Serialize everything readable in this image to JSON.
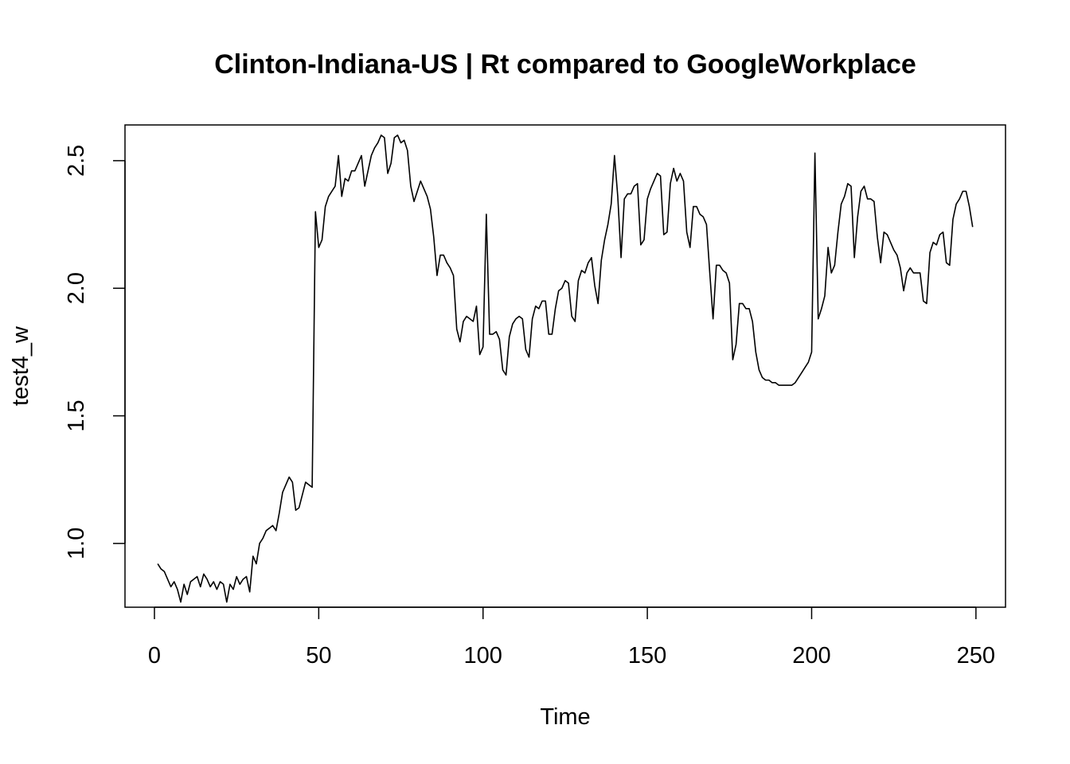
{
  "chart_data": {
    "type": "line",
    "title": "Clinton-Indiana-US | Rt compared to GoogleWorkplace",
    "xlabel": "Time",
    "ylabel": "test4_w",
    "xlim": [
      -8.96,
      259
    ],
    "ylim": [
      0.75,
      2.64
    ],
    "xticks": [
      0,
      50,
      100,
      150,
      200,
      250
    ],
    "yticks": [
      1.0,
      1.5,
      2.0,
      2.5
    ],
    "xtick_labels": [
      "0",
      "50",
      "100",
      "150",
      "200",
      "250"
    ],
    "ytick_labels": [
      "1.0",
      "1.5",
      "2.0",
      "2.5"
    ],
    "grid": false,
    "series": [
      {
        "color": "#000000",
        "x_start": 1,
        "values": [
          0.92,
          0.9,
          0.89,
          0.86,
          0.83,
          0.85,
          0.82,
          0.77,
          0.84,
          0.8,
          0.85,
          0.86,
          0.87,
          0.83,
          0.88,
          0.86,
          0.83,
          0.85,
          0.82,
          0.85,
          0.84,
          0.77,
          0.84,
          0.82,
          0.87,
          0.84,
          0.86,
          0.87,
          0.81,
          0.95,
          0.92,
          1.0,
          1.02,
          1.05,
          1.06,
          1.07,
          1.05,
          1.12,
          1.2,
          1.23,
          1.26,
          1.24,
          1.13,
          1.14,
          1.19,
          1.24,
          1.23,
          1.22,
          2.3,
          2.16,
          2.19,
          2.32,
          2.36,
          2.38,
          2.4,
          2.52,
          2.36,
          2.43,
          2.42,
          2.46,
          2.46,
          2.49,
          2.52,
          2.4,
          2.46,
          2.52,
          2.55,
          2.57,
          2.6,
          2.59,
          2.45,
          2.49,
          2.59,
          2.6,
          2.57,
          2.58,
          2.54,
          2.4,
          2.34,
          2.38,
          2.42,
          2.39,
          2.36,
          2.31,
          2.2,
          2.05,
          2.13,
          2.13,
          2.1,
          2.08,
          2.05,
          1.84,
          1.79,
          1.87,
          1.89,
          1.88,
          1.87,
          1.93,
          1.74,
          1.77,
          2.29,
          1.82,
          1.82,
          1.83,
          1.8,
          1.68,
          1.66,
          1.81,
          1.86,
          1.88,
          1.89,
          1.88,
          1.76,
          1.73,
          1.88,
          1.93,
          1.92,
          1.95,
          1.95,
          1.82,
          1.82,
          1.92,
          1.99,
          2.0,
          2.03,
          2.02,
          1.89,
          1.87,
          2.03,
          2.07,
          2.06,
          2.1,
          2.12,
          2.01,
          1.94,
          2.11,
          2.19,
          2.25,
          2.33,
          2.52,
          2.36,
          2.12,
          2.35,
          2.37,
          2.37,
          2.4,
          2.41,
          2.17,
          2.19,
          2.35,
          2.39,
          2.42,
          2.45,
          2.44,
          2.21,
          2.22,
          2.41,
          2.47,
          2.42,
          2.45,
          2.42,
          2.22,
          2.16,
          2.32,
          2.32,
          2.29,
          2.28,
          2.25,
          2.06,
          1.88,
          2.09,
          2.09,
          2.07,
          2.06,
          2.02,
          1.72,
          1.78,
          1.94,
          1.94,
          1.92,
          1.92,
          1.87,
          1.75,
          1.68,
          1.65,
          1.64,
          1.64,
          1.63,
          1.63,
          1.62,
          1.62,
          1.62,
          1.62,
          1.62,
          1.63,
          1.65,
          1.67,
          1.69,
          1.71,
          1.75,
          2.53,
          1.88,
          1.92,
          1.97,
          2.16,
          2.06,
          2.09,
          2.22,
          2.33,
          2.36,
          2.41,
          2.4,
          2.12,
          2.28,
          2.38,
          2.4,
          2.35,
          2.35,
          2.34,
          2.2,
          2.1,
          2.22,
          2.21,
          2.18,
          2.15,
          2.13,
          2.08,
          1.99,
          2.06,
          2.08,
          2.06,
          2.06,
          2.06,
          1.95,
          1.94,
          2.14,
          2.18,
          2.17,
          2.21,
          2.22,
          2.1,
          2.09,
          2.27,
          2.33,
          2.35,
          2.38,
          2.38,
          2.32,
          2.24
        ]
      }
    ]
  }
}
